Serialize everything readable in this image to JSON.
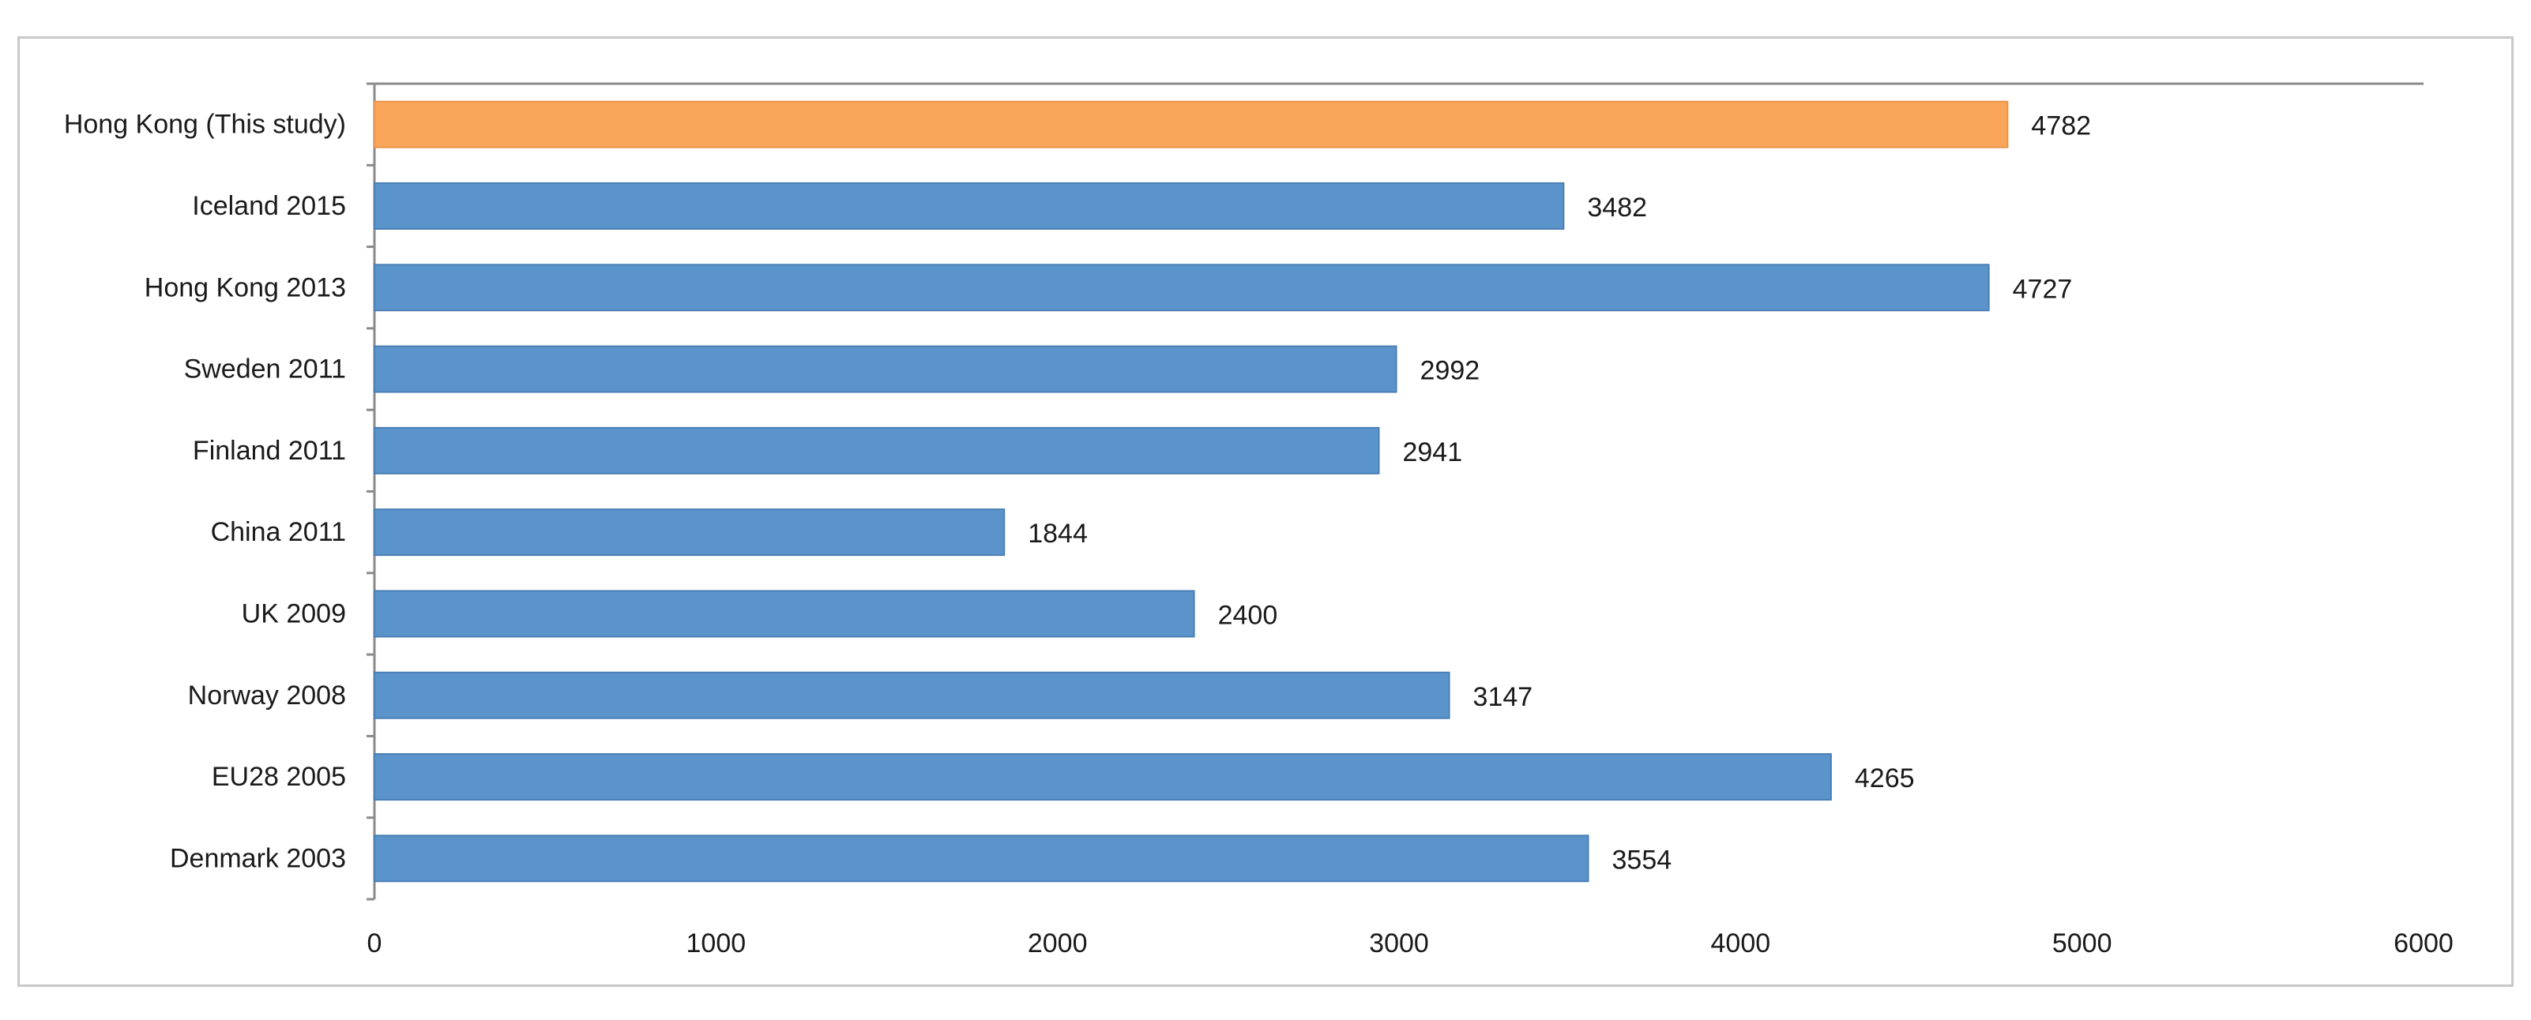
{
  "chart_data": {
    "type": "bar",
    "orientation": "horizontal",
    "categories": [
      "Hong Kong (This study)",
      "Iceland 2015",
      "Hong Kong 2013",
      "Sweden 2011",
      "Finland 2011",
      "China 2011",
      "UK 2009",
      "Norway 2008",
      "EU28 2005",
      "Denmark 2003"
    ],
    "values": [
      4782,
      3482,
      4727,
      2992,
      2941,
      1844,
      2400,
      3147,
      4265,
      3554
    ],
    "value_labels": [
      "4782",
      "3482",
      "4727",
      "2992",
      "2941",
      "1844",
      "2400",
      "3147",
      "4265",
      "3554"
    ],
    "bar_colors": [
      "#F9A65A",
      "#5B93CB",
      "#5B93CB",
      "#5B93CB",
      "#5B93CB",
      "#5B93CB",
      "#5B93CB",
      "#5B93CB",
      "#5B93CB",
      "#5B93CB"
    ],
    "highlight_color": "#F9A65A",
    "base_color": "#5B93CB",
    "xlim": [
      0,
      6000
    ],
    "xticks": [
      0,
      1000,
      2000,
      3000,
      4000,
      5000,
      6000
    ],
    "xtick_labels": [
      "0",
      "1000",
      "2000",
      "3000",
      "4000",
      "5000",
      "6000"
    ],
    "title": "",
    "xlabel": "",
    "ylabel": "",
    "grid": false,
    "legend": "none"
  }
}
